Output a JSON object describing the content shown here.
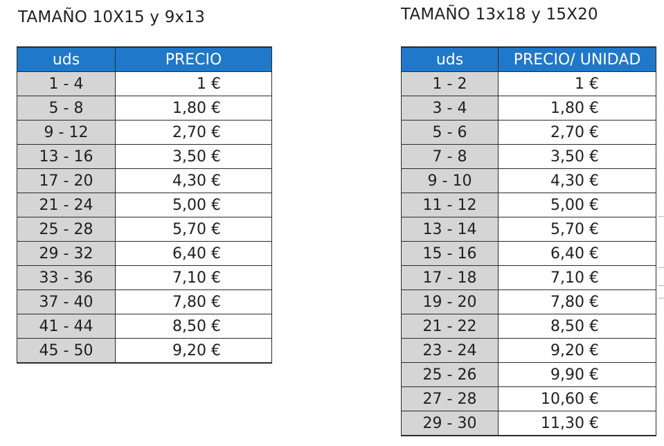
{
  "left": {
    "title": "TAMAÑO 10X15 y 9x13",
    "headers": {
      "uds": "uds",
      "price": "PRECIO"
    },
    "rows": [
      {
        "uds": "1 - 4",
        "price": "1 €"
      },
      {
        "uds": "5 - 8",
        "price": "1,80 €"
      },
      {
        "uds": "9 - 12",
        "price": "2,70 €"
      },
      {
        "uds": "13 - 16",
        "price": "3,50 €"
      },
      {
        "uds": "17 - 20",
        "price": "4,30 €"
      },
      {
        "uds": "21 - 24",
        "price": "5,00 €"
      },
      {
        "uds": "25 - 28",
        "price": "5,70 €"
      },
      {
        "uds": "29 - 32",
        "price": "6,40 €"
      },
      {
        "uds": "33 - 36",
        "price": "7,10 €"
      },
      {
        "uds": "37 - 40",
        "price": "7,80 €"
      },
      {
        "uds": "41 - 44",
        "price": "8,50 €"
      },
      {
        "uds": "45 - 50",
        "price": "9,20 €"
      }
    ]
  },
  "right": {
    "title": "TAMAÑO 13x18 y 15X20",
    "headers": {
      "uds": "uds",
      "price": "PRECIO/ UNIDAD"
    },
    "rows": [
      {
        "uds": "1 - 2",
        "price": "1 €"
      },
      {
        "uds": "3 - 4",
        "price": "1,80 €"
      },
      {
        "uds": "5 - 6",
        "price": "2,70 €"
      },
      {
        "uds": "7 - 8",
        "price": "3,50 €"
      },
      {
        "uds": "9 - 10",
        "price": "4,30 €"
      },
      {
        "uds": "11 - 12",
        "price": "5,00 €"
      },
      {
        "uds": "13 - 14",
        "price": "5,70 €"
      },
      {
        "uds": "15 - 16",
        "price": "6,40 €"
      },
      {
        "uds": "17 - 18",
        "price": "7,10 €"
      },
      {
        "uds": "19 - 20",
        "price": "7,80 €"
      },
      {
        "uds": "21 - 22",
        "price": "8,50 €"
      },
      {
        "uds": "23 - 24",
        "price": "9,20 €"
      },
      {
        "uds": "25 - 26",
        "price": "9,90 €"
      },
      {
        "uds": "27 - 28",
        "price": "10,60 €"
      },
      {
        "uds": "29 - 30",
        "price": "11,30 €"
      }
    ]
  },
  "colors": {
    "header_bg": "#1f78c9",
    "header_text": "#ffffff",
    "uds_cell_bg": "#d5d5d5",
    "price_cell_bg": "#ffffff",
    "border": "#2a2a2a"
  }
}
